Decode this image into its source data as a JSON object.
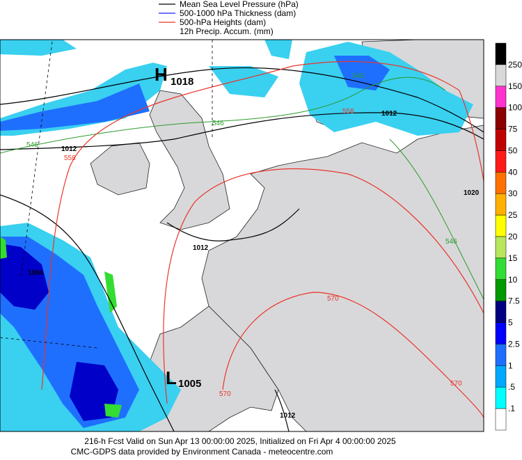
{
  "legend": [
    {
      "label": "Mean Sea Level Pressure (hPa)",
      "color": "#000000"
    },
    {
      "label": "500-1000 hPa Thickness (dam)",
      "color": "#1a1aff"
    },
    {
      "label": "500-hPa Heights (dam)",
      "color": "#e8352a"
    },
    {
      "label": "12h Precip. Accum. (mm)"
    }
  ],
  "map_labels": [
    {
      "text": "H",
      "color": "#000000"
    },
    {
      "text": "1018",
      "color": "#000000"
    },
    {
      "text": "L",
      "color": "#000000"
    },
    {
      "text": "1005",
      "color": "#000000"
    },
    {
      "text": "546",
      "color": "#2a9a2a"
    },
    {
      "text": "546",
      "color": "#2a9a2a"
    },
    {
      "text": "546",
      "color": "#2a9a2a"
    },
    {
      "text": "546",
      "color": "#2a9a2a"
    },
    {
      "text": "1012",
      "color": "#000000"
    },
    {
      "text": "1012",
      "color": "#000000"
    },
    {
      "text": "1012",
      "color": "#000000"
    },
    {
      "text": "1012",
      "color": "#000000"
    },
    {
      "text": "558",
      "color": "#e8352a"
    },
    {
      "text": "558",
      "color": "#e8352a"
    },
    {
      "text": "570",
      "color": "#e8352a"
    },
    {
      "text": "570",
      "color": "#e8352a"
    },
    {
      "text": "570",
      "color": "#e8352a"
    },
    {
      "text": "1004",
      "color": "#000000"
    },
    {
      "text": "1020",
      "color": "#000000"
    }
  ],
  "colorbar": {
    "labels": [
      "250",
      "150",
      "100",
      "75",
      "50",
      "40",
      "30",
      "25",
      "20",
      "15",
      "10",
      "7.5",
      "5",
      "2.5",
      "1",
      ".5",
      ".1"
    ],
    "colors": [
      "#000000",
      "#d9d9d9",
      "#ff33cc",
      "#8b0000",
      "#c00000",
      "#ff1a1a",
      "#ff7000",
      "#ffb000",
      "#ffff00",
      "#b8e65c",
      "#33dd33",
      "#009900",
      "#000080",
      "#0000ff",
      "#1f6fff",
      "#00a8ff",
      "#00ffff",
      "#ffffff"
    ]
  },
  "footer": [
    "216-h Fcst Valid on Sun Apr 13 00:00:00 2025, Initialized on Fri Apr  4 00:00:00 2025",
    "CMC-GDPS data provided by Environment Canada - meteocentre.com"
  ]
}
